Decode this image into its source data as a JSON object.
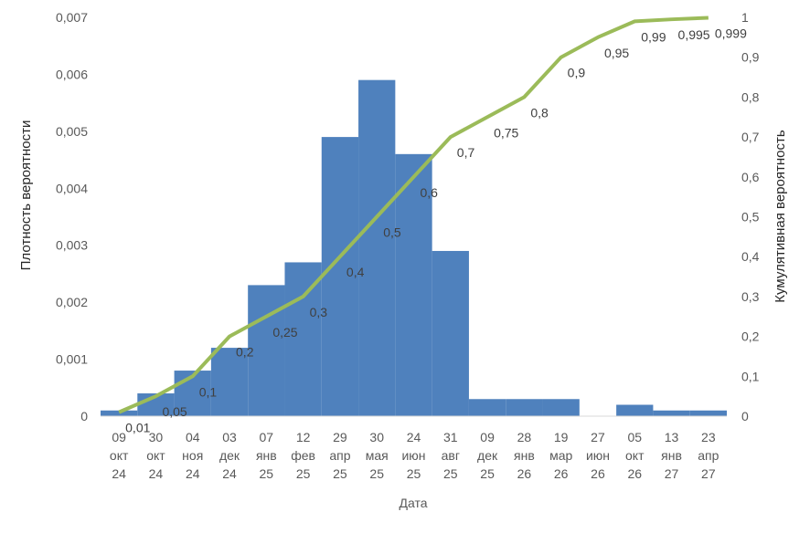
{
  "chart_data": {
    "type": "bar",
    "xlabel": "Дата",
    "ylabel_left": "Плотность вероятности",
    "ylabel_right": "Кумулятивная вероятность",
    "ylim_left": [
      0,
      0.007
    ],
    "ylim_right": [
      0,
      1
    ],
    "yticks_left": [
      "0",
      "0,001",
      "0,002",
      "0,003",
      "0,004",
      "0,005",
      "0,006",
      "0,007"
    ],
    "yticks_right": [
      "0",
      "0,1",
      "0,2",
      "0,3",
      "0,4",
      "0,5",
      "0,6",
      "0,7",
      "0,8",
      "0,9",
      "1"
    ],
    "categories": [
      [
        "09",
        "окт",
        "24"
      ],
      [
        "30",
        "окт",
        "24"
      ],
      [
        "04",
        "ноя",
        "24"
      ],
      [
        "03",
        "дек",
        "24"
      ],
      [
        "07",
        "янв",
        "25"
      ],
      [
        "12",
        "фев",
        "25"
      ],
      [
        "29",
        "апр",
        "25"
      ],
      [
        "30",
        "мая",
        "25"
      ],
      [
        "24",
        "июн",
        "25"
      ],
      [
        "31",
        "авг",
        "25"
      ],
      [
        "09",
        "дек",
        "25"
      ],
      [
        "28",
        "янв",
        "26"
      ],
      [
        "19",
        "мар",
        "26"
      ],
      [
        "27",
        "июн",
        "26"
      ],
      [
        "05",
        "окт",
        "26"
      ],
      [
        "13",
        "янв",
        "27"
      ],
      [
        "23",
        "апр",
        "27"
      ]
    ],
    "series": [
      {
        "type": "bar",
        "color": "#4f81bd",
        "values": [
          0.0001,
          0.0004,
          0.0008,
          0.0012,
          0.0023,
          0.0027,
          0.0049,
          0.0059,
          0.0046,
          0.0029,
          0.0003,
          0.0003,
          0.0003,
          0,
          0.0002,
          0.0001,
          0.0001
        ]
      },
      {
        "type": "line",
        "color": "#9bbb59",
        "axis": "right",
        "values": [
          0.01,
          0.05,
          0.1,
          0.2,
          0.25,
          0.3,
          0.4,
          0.5,
          0.6,
          0.7,
          0.75,
          0.8,
          0.9,
          0.95,
          0.99,
          0.995,
          0.999
        ],
        "labels": [
          "0,01",
          "0,05",
          "0,1",
          "0,2",
          "0,25",
          "0,3",
          "0,4",
          "0,5",
          "0,6",
          "0,7",
          "0,75",
          "0,8",
          "0,9",
          "0,95",
          "0,99",
          "0,995",
          "0,999"
        ]
      }
    ],
    "legend": "none",
    "grid": false
  }
}
